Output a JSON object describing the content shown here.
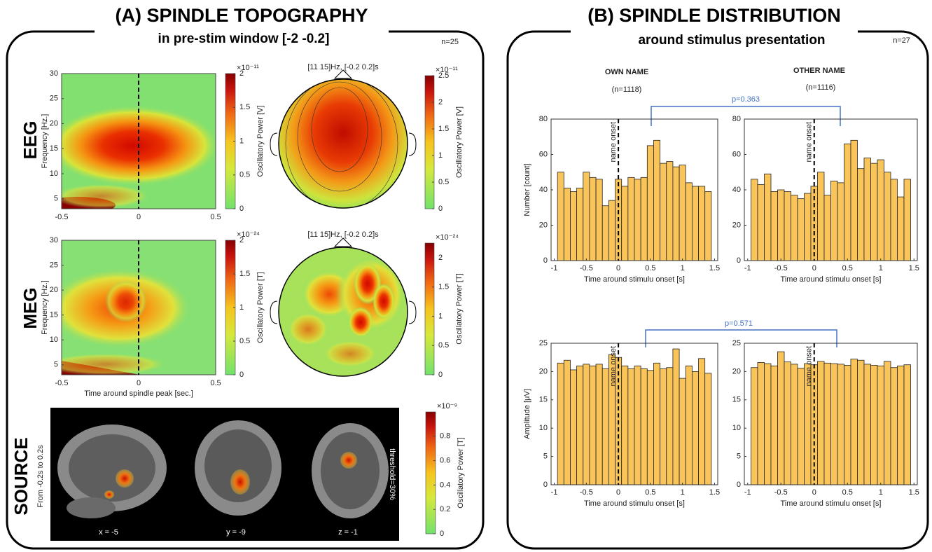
{
  "panel_a": {
    "title": "(A) SPINDLE TOPOGRAPHY",
    "subtitle": "in pre-stim window [-2 -0.2]",
    "n": "n=25",
    "eeg": {
      "label": "EEG",
      "tf": {
        "ylabel": "Frequency [Hz.]",
        "xlim": [
          -0.5,
          0.5
        ],
        "xticks": [
          -0.5,
          0,
          0.5
        ],
        "ylim": [
          3,
          30
        ],
        "yticks": [
          5,
          10,
          15,
          20,
          25,
          30
        ],
        "colorbar": {
          "exponent": "×10⁻¹¹",
          "label": "Oscillatory Power [V]",
          "lim": [
            0,
            2
          ],
          "ticks": [
            0,
            0.5,
            1,
            1.5,
            2
          ]
        }
      },
      "topo": {
        "title": "[11 15]Hz, [-0.2 0.2]s",
        "colorbar": {
          "exponent": "×10⁻¹¹",
          "label": "Oscillatory Power [V]",
          "lim": [
            0,
            2.5
          ],
          "ticks": [
            0,
            0.5,
            1,
            1.5,
            2,
            2.5
          ]
        }
      }
    },
    "meg": {
      "label": "MEG",
      "tf": {
        "ylabel": "Frequency [Hz.]",
        "xlabel": "Time around spindle peak [sec.]",
        "xlim": [
          -0.5,
          0.5
        ],
        "xticks": [
          -0.5,
          0,
          0.5
        ],
        "ylim": [
          3,
          30
        ],
        "yticks": [
          5,
          10,
          15,
          20,
          25,
          30
        ],
        "colorbar": {
          "exponent": "×10⁻²⁴",
          "label": "Oscillatory Power [T]",
          "lim": [
            0,
            2
          ],
          "ticks": [
            0,
            0.5,
            1,
            1.5,
            2
          ]
        }
      },
      "topo": {
        "title": "[11 15]Hz, [-0.2 0.2]s",
        "colorbar": {
          "exponent": "×10⁻²⁴",
          "label": "Oscillatory Power [T]",
          "lim": [
            0,
            2.25
          ],
          "ticks": [
            0,
            0.5,
            1,
            1.5,
            2
          ]
        }
      }
    },
    "source": {
      "label": "SOURCE",
      "caption": "From -0.2s to 0.2s",
      "slices": [
        "x = -5",
        "y = -9",
        "z = -1"
      ],
      "threshold": "threshold=30%",
      "colorbar": {
        "exponent": "×10⁻⁹",
        "label": "Oscillatory Power [T]",
        "lim": [
          0,
          1
        ],
        "ticks": [
          0,
          0.2,
          0.4,
          0.6,
          0.8
        ]
      }
    }
  },
  "panel_b": {
    "title": "(B) SPINDLE DISTRIBUTION",
    "subtitle": "around stimulus presentation",
    "n": "n=27",
    "columns": [
      {
        "title": "OWN NAME",
        "n": "(n=1118)"
      },
      {
        "title": "OTHER NAME",
        "n": "(n=1116)"
      }
    ],
    "comparisons": [
      "p=0.363",
      "p=0.571"
    ]
  },
  "chart_data": [
    {
      "type": "histogram",
      "color": "#f9c55a",
      "ylabel": "Number  [count]",
      "xlabel": "Time around stimulu onset [s]",
      "bins": [
        -0.95,
        -0.85,
        -0.75,
        -0.65,
        -0.55,
        -0.45,
        -0.35,
        -0.25,
        -0.15,
        -0.05,
        0.05,
        0.15,
        0.25,
        0.35,
        0.45,
        0.55,
        0.65,
        0.75,
        0.85,
        0.95,
        1.05,
        1.15,
        1.25,
        1.35,
        1.45
      ],
      "values": [
        50,
        41,
        39,
        41,
        50,
        47,
        46,
        31,
        34,
        46,
        42,
        47,
        46,
        47,
        65,
        68,
        55,
        56,
        53,
        54,
        44,
        42,
        42,
        39
      ],
      "xlim": [
        -1.05,
        1.55
      ],
      "xticks": [
        -1,
        -0.5,
        0,
        0.5,
        1,
        1.5
      ],
      "ylim": [
        0,
        80
      ],
      "yticks": [
        0,
        20,
        40,
        60,
        80
      ],
      "annotation": {
        "text": "name onset",
        "x": 0
      }
    },
    {
      "type": "histogram",
      "color": "#f9c55a",
      "xlabel": "Time around stimulu onset [s]",
      "bins": [
        -0.95,
        -0.85,
        -0.75,
        -0.65,
        -0.55,
        -0.45,
        -0.35,
        -0.25,
        -0.15,
        -0.05,
        0.05,
        0.15,
        0.25,
        0.35,
        0.45,
        0.55,
        0.65,
        0.75,
        0.85,
        0.95,
        1.05,
        1.15,
        1.25,
        1.35,
        1.45
      ],
      "values": [
        46,
        43,
        49,
        39,
        40,
        39,
        37,
        35,
        38,
        42,
        50,
        37,
        45,
        44,
        66,
        68,
        52,
        58,
        55,
        57,
        50,
        46,
        36,
        46
      ],
      "xlim": [
        -1.05,
        1.55
      ],
      "xticks": [
        -1,
        -0.5,
        0,
        0.5,
        1,
        1.5
      ],
      "ylim": [
        0,
        80
      ],
      "yticks": [
        0,
        20,
        40,
        60,
        80
      ],
      "annotation": {
        "text": "name onset",
        "x": 0
      }
    },
    {
      "type": "histogram",
      "color": "#f9c55a",
      "ylabel": "Amplitude  [μV]",
      "xlabel": "Time around stimulu onset [s]",
      "bins": [
        -0.95,
        -0.85,
        -0.75,
        -0.65,
        -0.55,
        -0.45,
        -0.35,
        -0.25,
        -0.15,
        -0.05,
        0.05,
        0.15,
        0.25,
        0.35,
        0.45,
        0.55,
        0.65,
        0.75,
        0.85,
        0.95,
        1.05,
        1.15,
        1.25,
        1.35,
        1.45
      ],
      "values": [
        21.5,
        22,
        20.3,
        21,
        21.3,
        21,
        21.3,
        20.5,
        23,
        22.5,
        21,
        20.5,
        21,
        20.5,
        20.2,
        21.5,
        20.5,
        20.7,
        24,
        18.8,
        21,
        20,
        22.3,
        19.7
      ],
      "xlim": [
        -1.05,
        1.55
      ],
      "xticks": [
        -1,
        -0.5,
        0,
        0.5,
        1,
        1.5
      ],
      "ylim": [
        0,
        25
      ],
      "yticks": [
        0,
        5,
        10,
        15,
        20,
        25
      ],
      "annotation": {
        "text": "name onset",
        "x": 0
      }
    },
    {
      "type": "histogram",
      "color": "#f9c55a",
      "xlabel": "Time around stimulu onset [s]",
      "bins": [
        -0.95,
        -0.85,
        -0.75,
        -0.65,
        -0.55,
        -0.45,
        -0.35,
        -0.25,
        -0.15,
        -0.05,
        0.05,
        0.15,
        0.25,
        0.35,
        0.45,
        0.55,
        0.65,
        0.75,
        0.85,
        0.95,
        1.05,
        1.15,
        1.25,
        1.35,
        1.45
      ],
      "values": [
        20.7,
        21.6,
        21.4,
        21,
        23.5,
        21.7,
        21.3,
        20.6,
        21.4,
        21.2,
        21.8,
        21.5,
        21.4,
        21.3,
        21.1,
        22.2,
        22,
        21.3,
        21.1,
        21,
        21.8,
        20.7,
        21,
        21.2
      ],
      "xlim": [
        -1.05,
        1.55
      ],
      "xticks": [
        -1,
        -0.5,
        0,
        0.5,
        1,
        1.5
      ],
      "ylim": [
        0,
        25
      ],
      "yticks": [
        0,
        5,
        10,
        15,
        20,
        25
      ],
      "annotation": {
        "text": "name onset",
        "x": 0
      }
    }
  ]
}
